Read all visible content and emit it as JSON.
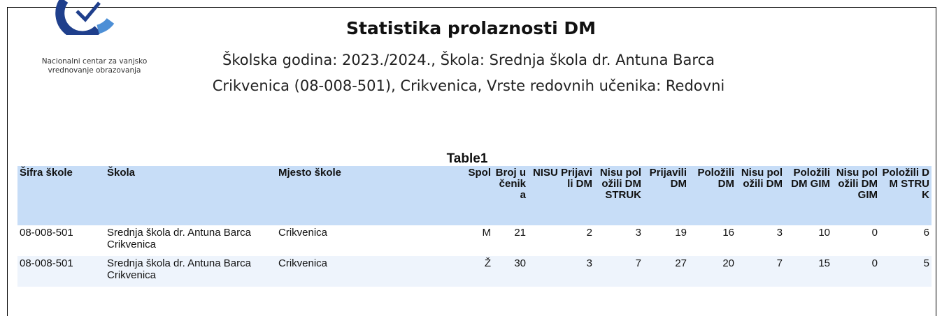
{
  "header": {
    "org_lines": [
      "Nacionalni centar za vanjsko",
      "vrednovanje obrazovanja"
    ],
    "title": "Statistika prolaznosti DM",
    "subtitle_lines": [
      "Školska godina: 2023./2024., Škola: Srednja škola dr. Antuna Barca",
      "Crikvenica (08-008-501), Crikvenica, Vrste redovnih učenika: Redovni"
    ]
  },
  "table": {
    "caption": "Table1",
    "columns": [
      "Šifra škole",
      "Škola",
      "Mjesto škole",
      "Spol",
      "Broj učenika",
      "NISU Prijavili DM",
      "Nisu položili DM STRUK",
      "Prijavili DM",
      "Položili DM",
      "Nisu položili DM",
      "Položili DM GIM",
      "Nisu položili DM GIM",
      "Položili DM STRUK"
    ],
    "rows": [
      [
        "08-008-501",
        "Srednja škola dr. Antuna Barca Crikvenica",
        "Crikvenica",
        "M",
        21,
        2,
        3,
        19,
        16,
        3,
        10,
        0,
        6
      ],
      [
        "08-008-501",
        "Srednja škola dr. Antuna Barca Crikvenica",
        "Crikvenica",
        "Ž",
        30,
        3,
        7,
        27,
        20,
        7,
        15,
        0,
        5
      ]
    ]
  }
}
